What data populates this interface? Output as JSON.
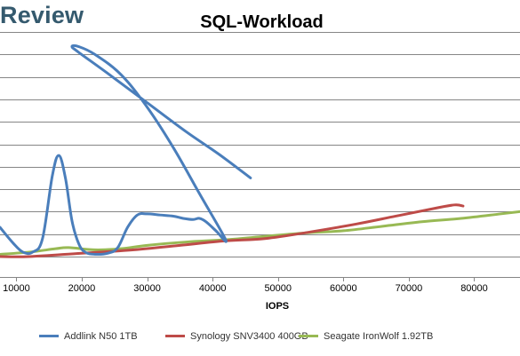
{
  "brand": "Review",
  "chart_data": {
    "type": "line",
    "title": "SQL-Workload",
    "xlabel": "IOPS",
    "ylabel": "",
    "xlim": [
      7500,
      87000
    ],
    "ylim": [
      0,
      11
    ],
    "x_ticks": [
      10000,
      20000,
      30000,
      40000,
      50000,
      60000,
      70000,
      80000
    ],
    "grid": "horizontal",
    "legend_position": "bottom",
    "series": [
      {
        "name": "Addlink N50 1TB",
        "color": "#4a7ebb",
        "points": [
          [
            7500,
            1.3
          ],
          [
            9500,
            0.6
          ],
          [
            11000,
            0.2
          ],
          [
            12500,
            0.2
          ],
          [
            14000,
            0.8
          ],
          [
            15500,
            3.6
          ],
          [
            16500,
            4.5
          ],
          [
            17500,
            3.5
          ],
          [
            18500,
            1.6
          ],
          [
            19500,
            0.6
          ],
          [
            20500,
            0.2
          ],
          [
            22000,
            0.1
          ],
          [
            24000,
            0.15
          ],
          [
            25500,
            0.4
          ],
          [
            27000,
            1.3
          ],
          [
            28500,
            1.85
          ],
          [
            30000,
            1.9
          ],
          [
            32000,
            1.85
          ],
          [
            34000,
            1.8
          ],
          [
            35500,
            1.7
          ],
          [
            37000,
            1.65
          ],
          [
            38000,
            1.7
          ],
          [
            39000,
            1.55
          ],
          [
            40500,
            1.15
          ],
          [
            42000,
            0.75
          ],
          [
            38000,
            2.8
          ],
          [
            34000,
            4.85
          ],
          [
            30000,
            6.65
          ],
          [
            26000,
            8.1
          ],
          [
            22000,
            9.0
          ],
          [
            19500,
            9.35
          ],
          [
            18500,
            9.35
          ],
          [
            19500,
            9.1
          ],
          [
            24000,
            8.15
          ],
          [
            30000,
            6.85
          ],
          [
            36000,
            5.55
          ],
          [
            41000,
            4.55
          ],
          [
            45800,
            3.5
          ]
        ]
      },
      {
        "name": "Synology SNV3400 400GB",
        "color": "#be4b48",
        "points": [
          [
            7500,
            0.0
          ],
          [
            12000,
            0.0
          ],
          [
            20000,
            0.15
          ],
          [
            28000,
            0.3
          ],
          [
            35000,
            0.5
          ],
          [
            42000,
            0.7
          ],
          [
            48000,
            0.8
          ],
          [
            55000,
            1.1
          ],
          [
            62000,
            1.45
          ],
          [
            68000,
            1.8
          ],
          [
            74000,
            2.15
          ],
          [
            77000,
            2.3
          ],
          [
            78300,
            2.25
          ]
        ]
      },
      {
        "name": "Seagate IronWolf 1.92TB",
        "color": "#98b954",
        "points": [
          [
            7500,
            0.1
          ],
          [
            12000,
            0.2
          ],
          [
            16000,
            0.35
          ],
          [
            18000,
            0.4
          ],
          [
            22000,
            0.3
          ],
          [
            26000,
            0.35
          ],
          [
            30000,
            0.5
          ],
          [
            36000,
            0.65
          ],
          [
            42000,
            0.75
          ],
          [
            48000,
            0.9
          ],
          [
            54000,
            1.05
          ],
          [
            60000,
            1.15
          ],
          [
            66000,
            1.35
          ],
          [
            72000,
            1.55
          ],
          [
            78000,
            1.7
          ],
          [
            84000,
            1.9
          ],
          [
            87000,
            2.0
          ]
        ]
      }
    ]
  }
}
